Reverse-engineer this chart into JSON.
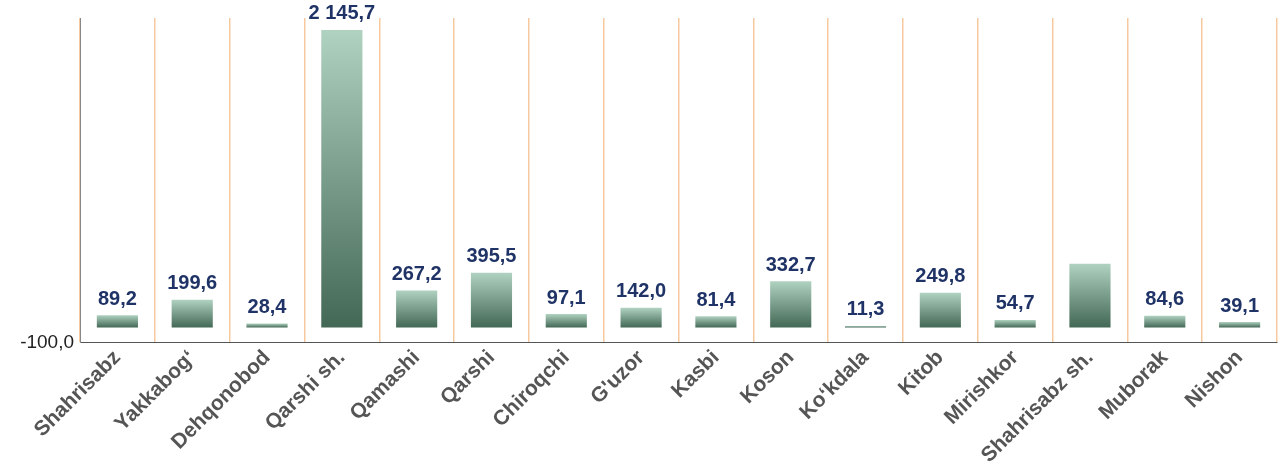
{
  "chart_data": {
    "type": "bar",
    "categories": [
      "Shahrisabz",
      "Yakkabogʻ",
      "Dehqonobod",
      "Qarshi sh.",
      "Qamashi",
      "Qarshi",
      "Chiroqchi",
      "G'uzor",
      "Kasbi",
      "Koson",
      "Koʻkdala",
      "Kitob",
      "Mirishkor",
      "Shahrisabz sh.",
      "Muborak",
      "Nishon"
    ],
    "values": [
      89.2,
      199.6,
      28.4,
      2145.7,
      267.2,
      395.5,
      97.1,
      142.0,
      81.4,
      332.7,
      11.3,
      249.8,
      54.7,
      460,
      84.6,
      39.1
    ],
    "value_labels": [
      "89,2",
      "199,6",
      "28,4",
      "2 145,7",
      "267,2",
      "395,5",
      "97,1",
      "142,0",
      "81,4",
      "332,7",
      "11,3",
      "249,8",
      "54,7",
      null,
      "84,6",
      "39,1"
    ],
    "color": "#6fae8e",
    "annotations": [
      "-100,0"
    ],
    "grid": "x"
  }
}
